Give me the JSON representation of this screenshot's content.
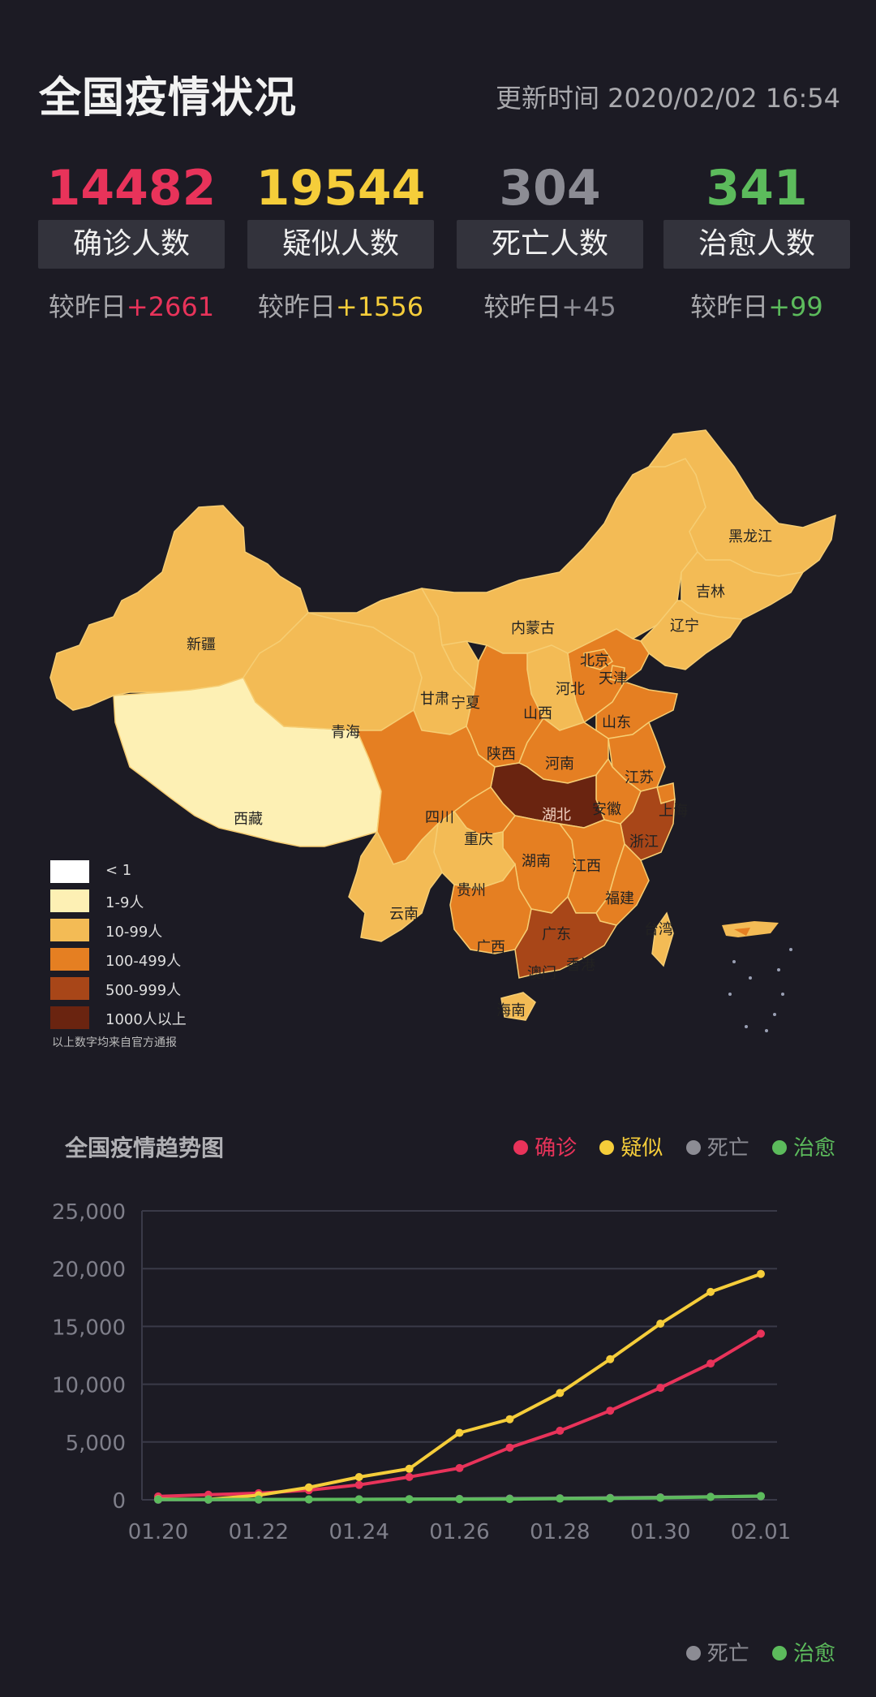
{
  "header": {
    "title": "全国疫情状况",
    "update_time": "更新时间 2020/02/02 16:54"
  },
  "stats": [
    {
      "number": "14482",
      "label": "确诊人数",
      "delta_prefix": "较昨日",
      "delta_value": "+2661",
      "color": "#e8335a"
    },
    {
      "number": "19544",
      "label": "疑似人数",
      "delta_prefix": "较昨日",
      "delta_value": "+1556",
      "color": "#f5cd3a"
    },
    {
      "number": "304",
      "label": "死亡人数",
      "delta_prefix": "较昨日",
      "delta_value": "+45",
      "color": "#8c8c94"
    },
    {
      "number": "341",
      "label": "治愈人数",
      "delta_prefix": "较昨日",
      "delta_value": "+99",
      "color": "#5cbb5c"
    }
  ],
  "map": {
    "provinces": [
      "黑龙江",
      "吉林",
      "辽宁",
      "内蒙古",
      "新疆",
      "北京",
      "天津",
      "河北",
      "宁夏",
      "甘肃",
      "青海",
      "山西",
      "山东",
      "陕西",
      "河南",
      "江苏",
      "西藏",
      "四川",
      "湖北",
      "安徽",
      "上海",
      "重庆",
      "浙江",
      "湖南",
      "江西",
      "贵州",
      "福建",
      "云南",
      "台湾",
      "广西",
      "广东",
      "澳门",
      "香港",
      "海南"
    ],
    "legend": [
      {
        "label": "< 1",
        "color": "#ffffff"
      },
      {
        "label": "1-9人",
        "color": "#fdf0b4"
      },
      {
        "label": "10-99人",
        "color": "#f3bb55"
      },
      {
        "label": "100-499人",
        "color": "#e57f22"
      },
      {
        "label": "500-999人",
        "color": "#a84618"
      },
      {
        "label": "1000人以上",
        "color": "#6a2410"
      }
    ],
    "note": "以上数字均来自官方通报"
  },
  "trend": {
    "title": "全国疫情趋势图",
    "legend": [
      {
        "name": "确诊",
        "color": "#e8335a"
      },
      {
        "name": "疑似",
        "color": "#f5cd3a"
      },
      {
        "name": "死亡",
        "color": "#8c8c94"
      },
      {
        "name": "治愈",
        "color": "#5cbb5c"
      }
    ]
  },
  "bottom_legend": [
    {
      "name": "死亡",
      "color": "#8c8c94"
    },
    {
      "name": "治愈",
      "color": "#5cbb5c"
    }
  ],
  "chart_data": {
    "type": "line",
    "x": [
      "01.20",
      "01.21",
      "01.22",
      "01.23",
      "01.24",
      "01.25",
      "01.26",
      "01.27",
      "01.28",
      "01.29",
      "01.30",
      "01.31",
      "02.01"
    ],
    "x_tick_labels": [
      "01.20",
      "01.22",
      "01.24",
      "01.26",
      "01.28",
      "01.30",
      "02.01"
    ],
    "ylim": [
      0,
      25000
    ],
    "y_ticks": [
      "0",
      "5,000",
      "10,000",
      "15,000",
      "20,000",
      "25,000"
    ],
    "grid": true,
    "series": [
      {
        "name": "确诊",
        "color": "#e8335a",
        "values": [
          291,
          440,
          571,
          830,
          1287,
          1975,
          2744,
          4515,
          5974,
          7711,
          9692,
          11791,
          14380
        ]
      },
      {
        "name": "疑似",
        "color": "#f5cd3a",
        "values": [
          54,
          37,
          393,
          1072,
          1965,
          2684,
          5794,
          6973,
          9239,
          12167,
          15238,
          17988,
          19544
        ]
      },
      {
        "name": "死亡",
        "color": "#8c8c94",
        "values": [
          6,
          9,
          17,
          25,
          41,
          56,
          80,
          106,
          132,
          170,
          213,
          259,
          304
        ]
      },
      {
        "name": "治愈",
        "color": "#5cbb5c",
        "values": [
          25,
          25,
          28,
          34,
          38,
          49,
          51,
          60,
          103,
          124,
          171,
          243,
          328
        ]
      }
    ]
  }
}
